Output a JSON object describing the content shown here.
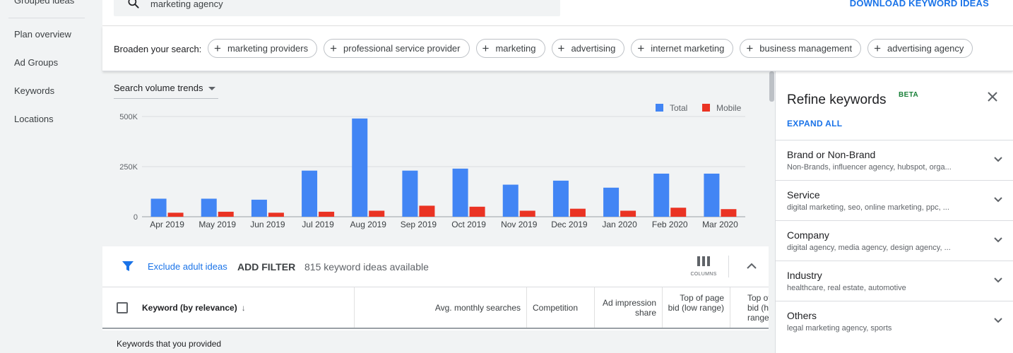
{
  "left_nav": {
    "cut_item": "Grouped ideas",
    "items": [
      "Plan overview",
      "Ad Groups",
      "Keywords",
      "Locations"
    ]
  },
  "search": {
    "value": "marketing agency"
  },
  "download_label": "DOWNLOAD KEYWORD IDEAS",
  "broaden": {
    "label": "Broaden your search:",
    "chips": [
      "marketing providers",
      "professional service provider",
      "marketing",
      "advertising",
      "internet marketing",
      "business management",
      "advertising agency"
    ]
  },
  "trend_selector": "Search volume trends",
  "chart_data": {
    "type": "bar",
    "categories": [
      "Apr 2019",
      "May 2019",
      "Jun 2019",
      "Jul 2019",
      "Aug 2019",
      "Sep 2019",
      "Oct 2019",
      "Nov 2019",
      "Dec 2019",
      "Jan 2020",
      "Feb 2020",
      "Mar 2020"
    ],
    "series": [
      {
        "name": "Total",
        "color": "#4285f4",
        "values": [
          90000,
          90000,
          85000,
          230000,
          490000,
          230000,
          240000,
          160000,
          180000,
          145000,
          215000,
          215000
        ]
      },
      {
        "name": "Mobile",
        "color": "#ea3323",
        "values": [
          20000,
          25000,
          20000,
          25000,
          30000,
          55000,
          50000,
          30000,
          40000,
          30000,
          45000,
          38000
        ]
      }
    ],
    "y_ticks": [
      "0",
      "250K",
      "500K"
    ],
    "ylim": [
      0,
      500000
    ],
    "grid": true,
    "legend_position": "top-right"
  },
  "filter": {
    "exclude_label": "Exclude adult ideas",
    "add_filter": "ADD FILTER",
    "count_text": "815 keyword ideas available",
    "columns_label": "COLUMNS"
  },
  "table": {
    "keyword_header": "Keyword (by relevance)",
    "columns": [
      "Avg. monthly searches",
      "Competition",
      "Ad impression share",
      "Top of page bid (low range)",
      "Top of page bid (high range)"
    ],
    "group_label": "Keywords that you provided"
  },
  "refine": {
    "title": "Refine keywords",
    "badge": "BETA",
    "expand_all": "EXPAND ALL",
    "sections": [
      {
        "title": "Brand or Non-Brand",
        "subtitle": "Non-Brands, influencer agency, hubspot, orga..."
      },
      {
        "title": "Service",
        "subtitle": "digital marketing, seo, online marketing, ppc, ..."
      },
      {
        "title": "Company",
        "subtitle": "digital agency, media agency, design agency, ..."
      },
      {
        "title": "Industry",
        "subtitle": "healthcare, real estate, automotive"
      },
      {
        "title": "Others",
        "subtitle": "legal marketing agency, sports"
      }
    ]
  }
}
